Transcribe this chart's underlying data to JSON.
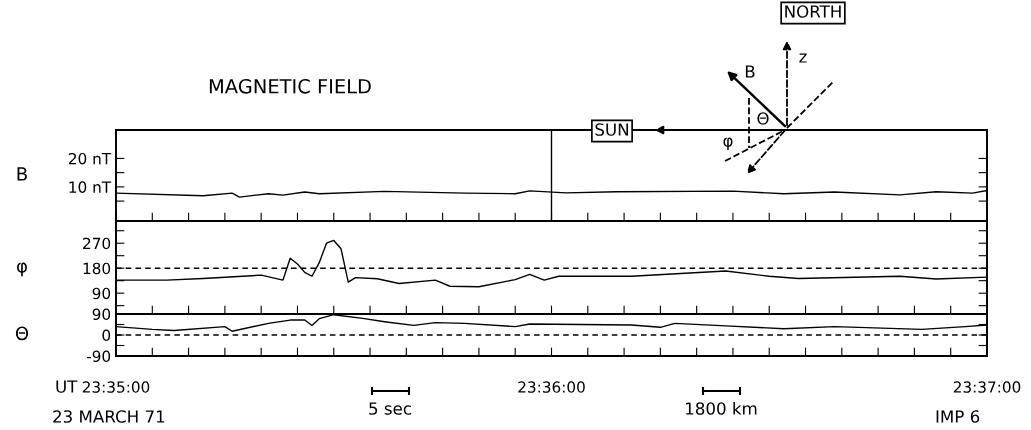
{
  "chart_data": [
    {
      "type": "line",
      "title": "MAGNETIC FIELD",
      "ylabel": "B",
      "annotations": [
        "NORTH",
        "z",
        "B",
        "SUN",
        "Θ",
        "φ"
      ],
      "x": [
        23.583333,
        23.586667,
        23.587778,
        23.588056,
        23.589167,
        23.589722,
        23.590556,
        23.591111,
        23.593611,
        23.596667,
        23.598611,
        23.599167,
        23.600556,
        23.6025,
        23.606944,
        23.608889,
        23.610833,
        23.613333,
        23.614722,
        23.616111,
        23.616667
      ],
      "series": [
        {
          "color": "#000000",
          "values": [
            7.8,
            6.9,
            7.8,
            6.4,
            7.6,
            7.1,
            8.2,
            7.6,
            8.4,
            7.8,
            7.6,
            8.6,
            7.9,
            8.3,
            8.5,
            7.6,
            8.2,
            7.2,
            8.3,
            7.8,
            8.7
          ]
        }
      ],
      "xlim": [
        23.583333,
        23.616667
      ],
      "xticks": [
        23.583333,
        23.584722,
        23.586111,
        23.5875,
        23.588889,
        23.590278,
        23.591667,
        23.593056,
        23.594444,
        23.595833,
        23.597222,
        23.598611,
        23.6,
        23.601389,
        23.602778,
        23.604167,
        23.605556,
        23.606944,
        23.608333,
        23.609722,
        23.611111,
        23.6125,
        23.613889,
        23.615278,
        23.616667
      ],
      "ylim": [
        -2,
        30
      ],
      "yticks": [
        {
          "value": 5,
          "label": null
        },
        {
          "value": 10,
          "label": "10 nT"
        },
        {
          "value": 15,
          "label": null
        },
        {
          "value": 20,
          "label": "20 nT"
        }
      ],
      "ref_lines": [
        {
          "axis": "x",
          "value": 23.6,
          "label": null,
          "color": "#000000",
          "line_style": "solid"
        }
      ],
      "tick_labels": "y"
    },
    {
      "type": "line",
      "ylabel": "φ",
      "x": [
        23.583333,
        23.585278,
        23.586667,
        23.588889,
        23.589722,
        23.59,
        23.590278,
        23.590556,
        23.590833,
        23.591111,
        23.591389,
        23.591667,
        23.591944,
        23.592222,
        23.5925,
        23.593333,
        23.594167,
        23.595556,
        23.596111,
        23.597222,
        23.598611,
        23.599167,
        23.599722,
        23.600278,
        23.603056,
        23.606667,
        23.608333,
        23.609444,
        23.613333,
        23.614722,
        23.616667
      ],
      "series": [
        {
          "color": "#000000",
          "values": [
            137,
            137,
            143,
            155,
            137,
            216,
            195,
            165,
            151,
            200,
            270,
            280,
            250,
            130,
            146,
            142,
            125,
            137,
            115,
            113,
            139,
            158,
            137,
            151,
            151,
            170,
            151,
            143,
            151,
            141,
            148
          ]
        }
      ],
      "xlim": [
        23.583333,
        23.616667
      ],
      "xticks": [
        23.583333,
        23.584722,
        23.586111,
        23.5875,
        23.588889,
        23.590278,
        23.591667,
        23.593056,
        23.594444,
        23.595833,
        23.597222,
        23.598611,
        23.6,
        23.601389,
        23.602778,
        23.604167,
        23.605556,
        23.606944,
        23.608333,
        23.609722,
        23.611111,
        23.6125,
        23.613889,
        23.615278,
        23.616667
      ],
      "ylim": [
        15,
        350
      ],
      "yticks": [
        {
          "value": 45,
          "label": null
        },
        90,
        {
          "value": 135,
          "label": null
        },
        180,
        {
          "value": 225,
          "label": null
        },
        270,
        {
          "value": 315,
          "label": null
        }
      ],
      "ref_lines": [
        {
          "axis": "y",
          "value": 180,
          "label": null,
          "color": "#000000",
          "line_style": "dashed"
        }
      ],
      "tick_labels": "y"
    },
    {
      "type": "line",
      "ylabel": "Θ",
      "annotations": [
        "UT",
        "5 sec",
        "1800 km",
        "23 MARCH 71",
        "IMP 6"
      ],
      "x": [
        23.583333,
        23.584722,
        23.585556,
        23.5875,
        23.587778,
        23.589167,
        23.59,
        23.590556,
        23.590833,
        23.591111,
        23.591667,
        23.592778,
        23.593611,
        23.594722,
        23.595556,
        23.596667,
        23.598611,
        23.599167,
        23.603056,
        23.604167,
        23.604722,
        23.606667,
        23.608889,
        23.610833,
        23.614167,
        23.615833,
        23.616667
      ],
      "series": [
        {
          "color": "#000000",
          "values": [
            36,
            24,
            19,
            36,
            16,
            50,
            64,
            64,
            41,
            70,
            87,
            71,
            57,
            41,
            53,
            50,
            36,
            47,
            43,
            33,
            50,
            39,
            27,
            36,
            24,
            36,
            43
          ]
        }
      ],
      "xlim": [
        23.583333,
        23.616667
      ],
      "xticks": [
        {
          "value": 23.583333,
          "label": "23:35:00"
        },
        {
          "value": 23.584722,
          "label": null
        },
        {
          "value": 23.586111,
          "label": null
        },
        {
          "value": 23.5875,
          "label": null
        },
        {
          "value": 23.588889,
          "label": null
        },
        {
          "value": 23.590278,
          "label": null
        },
        {
          "value": 23.591667,
          "label": null
        },
        {
          "value": 23.593056,
          "label": null
        },
        {
          "value": 23.594444,
          "label": null
        },
        {
          "value": 23.595833,
          "label": null
        },
        {
          "value": 23.597222,
          "label": null
        },
        {
          "value": 23.598611,
          "label": null
        },
        {
          "value": 23.6,
          "label": "23:36:00"
        },
        {
          "value": 23.601389,
          "label": null
        },
        {
          "value": 23.602778,
          "label": null
        },
        {
          "value": 23.604167,
          "label": null
        },
        {
          "value": 23.605556,
          "label": null
        },
        {
          "value": 23.606944,
          "label": null
        },
        {
          "value": 23.608333,
          "label": null
        },
        {
          "value": 23.609722,
          "label": null
        },
        {
          "value": 23.611111,
          "label": null
        },
        {
          "value": 23.6125,
          "label": null
        },
        {
          "value": 23.613889,
          "label": null
        },
        {
          "value": 23.615278,
          "label": null
        },
        {
          "value": 23.616667,
          "label": "23:37:00"
        }
      ],
      "ylim": [
        -90,
        90
      ],
      "yticks": [
        -90,
        {
          "value": -45,
          "label": null
        },
        0,
        {
          "value": 45,
          "label": null
        },
        90
      ],
      "ref_lines": [
        {
          "axis": "y",
          "value": 0,
          "label": null,
          "color": "#000000",
          "line_style": "dashed"
        }
      ]
    }
  ]
}
